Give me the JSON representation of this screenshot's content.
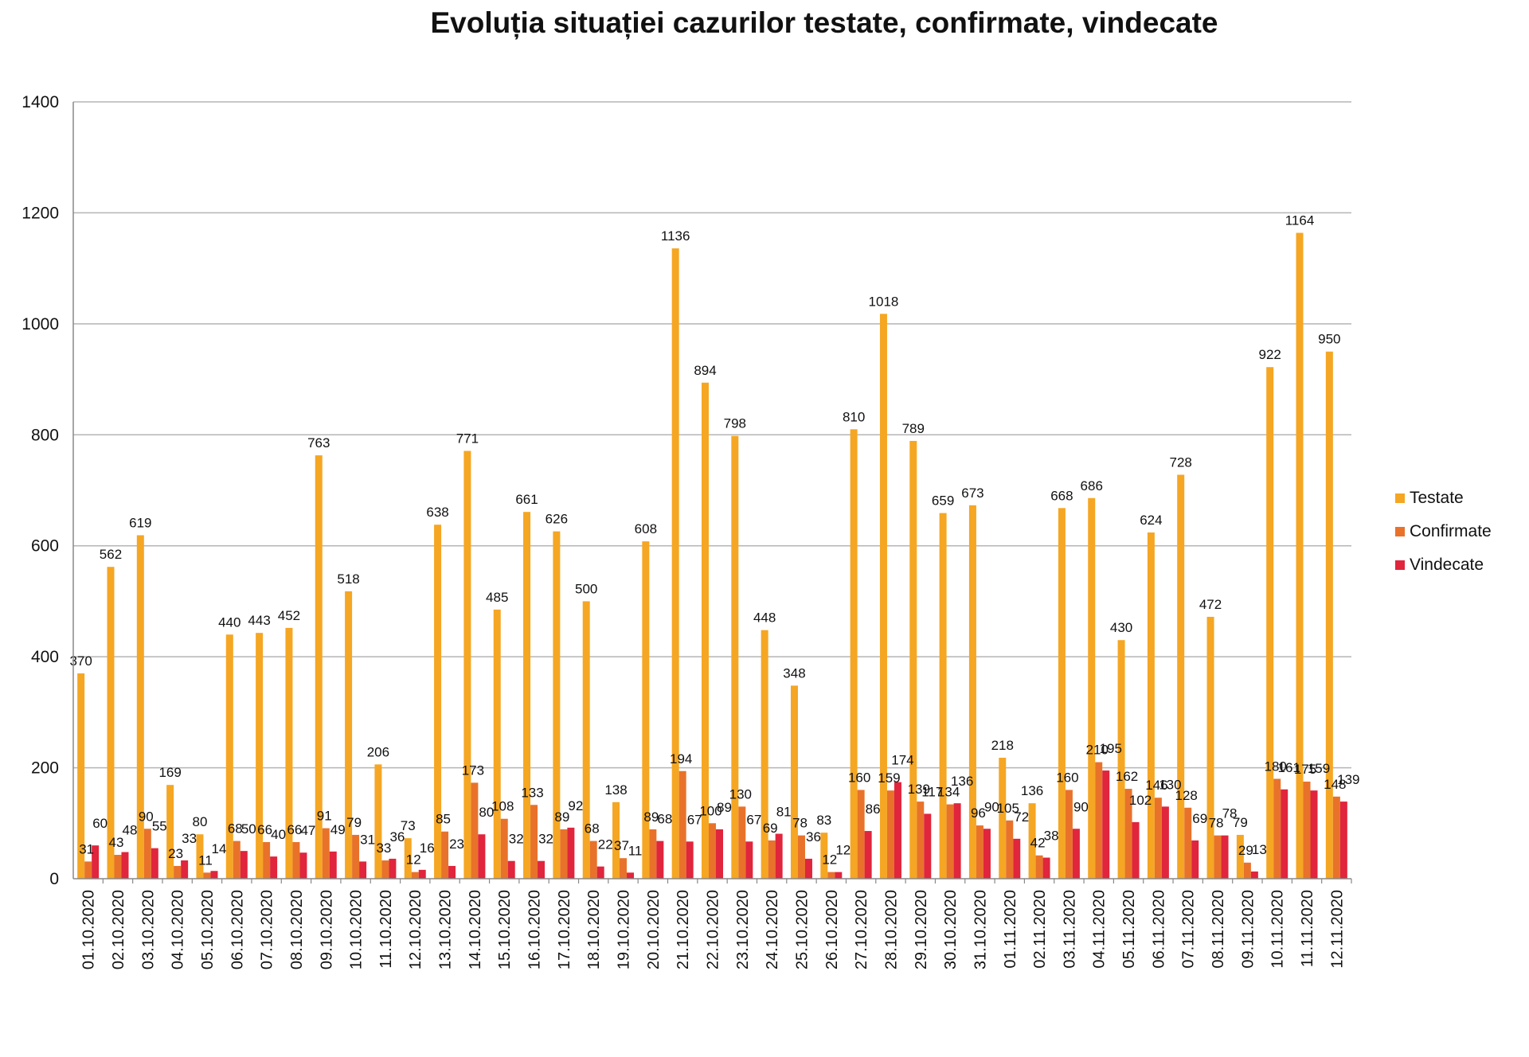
{
  "chart_data": {
    "type": "bar",
    "title": "Evoluția situației cazurilor testate, confirmate, vindecate",
    "xlabel": "",
    "ylabel": "",
    "ylim": [
      0,
      1400
    ],
    "yticks": [
      "0",
      "200",
      "400",
      "600",
      "800",
      "1000",
      "1200",
      "1400"
    ],
    "grid": true,
    "legend_position": "right",
    "categories": [
      "01.10.2020",
      "02.10.2020",
      "03.10.2020",
      "04.10.2020",
      "05.10.2020",
      "06.10.2020",
      "07.10.2020",
      "08.10.2020",
      "09.10.2020",
      "10.10.2020",
      "11.10.2020",
      "12.10.2020",
      "13.10.2020",
      "14.10.2020",
      "15.10.2020",
      "16.10.2020",
      "17.10.2020",
      "18.10.2020",
      "19.10.2020",
      "20.10.2020",
      "21.10.2020",
      "22.10.2020",
      "23.10.2020",
      "24.10.2020",
      "25.10.2020",
      "26.10.2020",
      "27.10.2020",
      "28.10.2020",
      "29.10.2020",
      "30.10.2020",
      "31.10.2020",
      "01.11.2020",
      "02.11.2020",
      "03.11.2020",
      "04.11.2020",
      "05.11.2020",
      "06.11.2020",
      "07.11.2020",
      "08.11.2020",
      "09.11.2020",
      "10.11.2020",
      "11.11.2020",
      "12.11.2020"
    ],
    "series": [
      {
        "name": "Testate",
        "color": "#f5a623",
        "values": [
          370,
          562,
          619,
          169,
          80,
          440,
          443,
          452,
          763,
          518,
          206,
          73,
          638,
          771,
          485,
          661,
          626,
          500,
          138,
          608,
          1136,
          894,
          798,
          448,
          348,
          83,
          810,
          1018,
          789,
          659,
          673,
          218,
          136,
          668,
          686,
          430,
          624,
          728,
          472,
          79,
          922,
          1164,
          950
        ]
      },
      {
        "name": "Confirmate",
        "color": "#e8722a",
        "values": [
          31,
          43,
          90,
          23,
          11,
          68,
          66,
          66,
          91,
          79,
          33,
          12,
          85,
          173,
          108,
          133,
          89,
          68,
          37,
          89,
          194,
          100,
          130,
          69,
          78,
          12,
          160,
          159,
          139,
          134,
          96,
          105,
          42,
          160,
          210,
          162,
          146,
          128,
          78,
          29,
          180,
          175,
          148
        ]
      },
      {
        "name": "Vindecate",
        "color": "#e0253c",
        "values": [
          60,
          48,
          55,
          33,
          14,
          50,
          40,
          47,
          49,
          31,
          36,
          16,
          23,
          80,
          32,
          32,
          92,
          22,
          11,
          68,
          67,
          89,
          67,
          81,
          36,
          12,
          86,
          174,
          117,
          136,
          90,
          72,
          38,
          90,
          195,
          102,
          130,
          69,
          78,
          13,
          161,
          159,
          139
        ]
      }
    ]
  }
}
